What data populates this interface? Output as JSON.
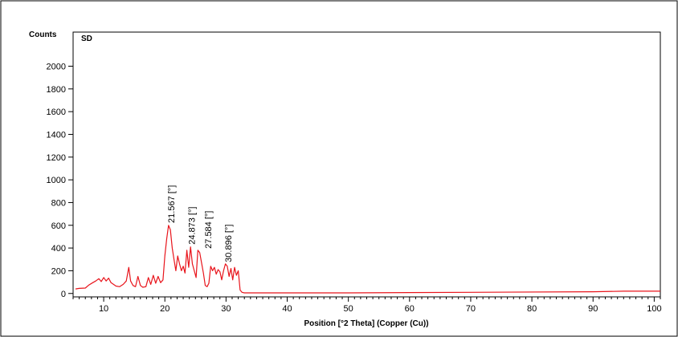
{
  "chart_data": {
    "type": "line",
    "panel_label": "SD",
    "ylabel": "Counts",
    "xlabel": "Position [°2 Theta] (Copper (Cu))",
    "xlim": [
      5,
      101
    ],
    "ylim": [
      -30,
      2300
    ],
    "xticks": [
      10,
      20,
      30,
      40,
      50,
      60,
      70,
      80,
      90,
      100
    ],
    "yticks": [
      0,
      200,
      400,
      600,
      800,
      1000,
      1200,
      1400,
      1600,
      1800,
      2000
    ],
    "grid": false,
    "line_color": "#e8141b",
    "series": [
      {
        "points": [
          [
            5.4,
            40
          ],
          [
            6.0,
            45
          ],
          [
            7.0,
            48
          ],
          [
            7.6,
            75
          ],
          [
            8.2,
            95
          ],
          [
            8.7,
            110
          ],
          [
            9.2,
            130
          ],
          [
            9.6,
            105
          ],
          [
            10.0,
            140
          ],
          [
            10.4,
            110
          ],
          [
            10.8,
            135
          ],
          [
            11.2,
            95
          ],
          [
            11.6,
            80
          ],
          [
            12.0,
            65
          ],
          [
            12.6,
            60
          ],
          [
            13.2,
            80
          ],
          [
            13.7,
            110
          ],
          [
            14.1,
            230
          ],
          [
            14.4,
            110
          ],
          [
            14.8,
            70
          ],
          [
            15.2,
            60
          ],
          [
            15.6,
            150
          ],
          [
            16.0,
            70
          ],
          [
            16.4,
            55
          ],
          [
            16.9,
            60
          ],
          [
            17.3,
            140
          ],
          [
            17.7,
            80
          ],
          [
            18.1,
            160
          ],
          [
            18.5,
            90
          ],
          [
            18.9,
            150
          ],
          [
            19.3,
            95
          ],
          [
            19.7,
            120
          ],
          [
            20.0,
            330
          ],
          [
            20.3,
            480
          ],
          [
            20.6,
            600
          ],
          [
            20.9,
            560
          ],
          [
            21.2,
            400
          ],
          [
            21.5,
            300
          ],
          [
            21.8,
            200
          ],
          [
            22.1,
            330
          ],
          [
            22.4,
            260
          ],
          [
            22.7,
            200
          ],
          [
            23.0,
            240
          ],
          [
            23.3,
            180
          ],
          [
            23.6,
            380
          ],
          [
            23.9,
            230
          ],
          [
            24.2,
            410
          ],
          [
            24.5,
            260
          ],
          [
            24.8,
            200
          ],
          [
            25.1,
            140
          ],
          [
            25.4,
            380
          ],
          [
            25.7,
            360
          ],
          [
            26.0,
            270
          ],
          [
            26.3,
            180
          ],
          [
            26.6,
            70
          ],
          [
            26.9,
            60
          ],
          [
            27.2,
            90
          ],
          [
            27.5,
            240
          ],
          [
            27.8,
            200
          ],
          [
            28.1,
            230
          ],
          [
            28.4,
            170
          ],
          [
            28.7,
            210
          ],
          [
            29.0,
            190
          ],
          [
            29.3,
            120
          ],
          [
            29.6,
            200
          ],
          [
            29.9,
            260
          ],
          [
            30.2,
            240
          ],
          [
            30.5,
            150
          ],
          [
            30.8,
            220
          ],
          [
            31.1,
            120
          ],
          [
            31.4,
            230
          ],
          [
            31.7,
            160
          ],
          [
            32.0,
            200
          ],
          [
            32.3,
            30
          ],
          [
            32.6,
            10
          ],
          [
            33.0,
            5
          ],
          [
            50.0,
            5
          ],
          [
            70.0,
            10
          ],
          [
            90.0,
            15
          ],
          [
            95.0,
            20
          ],
          [
            101.0,
            20
          ]
        ]
      }
    ],
    "annotations": [
      {
        "text": "21.567 [°]",
        "x": 21.567,
        "y": 620
      },
      {
        "text": "24.873 [°]",
        "x": 24.873,
        "y": 430
      },
      {
        "text": "27.584 [°]",
        "x": 27.584,
        "y": 395
      },
      {
        "text": "30.896 [°]",
        "x": 30.896,
        "y": 275
      }
    ]
  }
}
